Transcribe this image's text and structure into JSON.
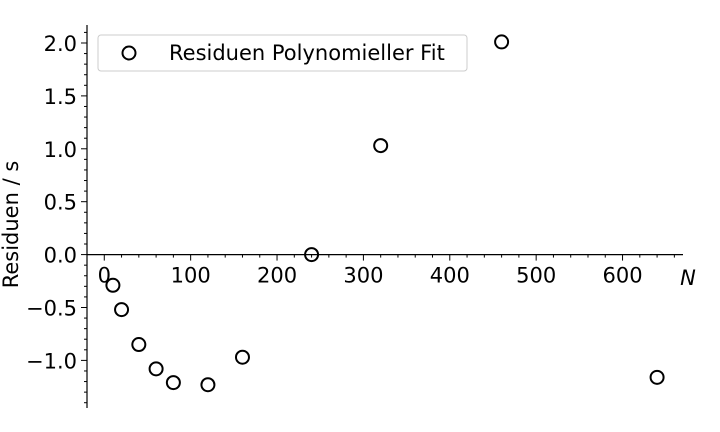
{
  "chart_data": {
    "type": "scatter",
    "title": "",
    "xlabel": "N",
    "ylabel": "Residuen / s",
    "xlim": [
      -20,
      670
    ],
    "ylim": [
      -1.45,
      2.17
    ],
    "x_ticks": [
      0,
      100,
      200,
      300,
      400,
      500,
      600
    ],
    "y_ticks": [
      -1.0,
      -0.5,
      0.0,
      0.5,
      1.0,
      1.5,
      2.0
    ],
    "x_tick_labels": [
      "0",
      "100",
      "200",
      "300",
      "400",
      "500",
      "600"
    ],
    "y_tick_labels": [
      "−1.0",
      "−0.5",
      "0.0",
      "0.5",
      "1.0",
      "1.5",
      "2.0"
    ],
    "grid": false,
    "legend_position": "top-left",
    "marker_color": "#000000",
    "series": [
      {
        "name": "Residuen Polynomieller Fit",
        "marker": "open-circle",
        "x": [
          10,
          20,
          40,
          60,
          80,
          120,
          160,
          240,
          320,
          460,
          640
        ],
        "y": [
          -0.29,
          -0.52,
          -0.85,
          -1.08,
          -1.21,
          -1.23,
          -0.97,
          0.0,
          1.03,
          2.01,
          -1.16
        ]
      }
    ]
  }
}
